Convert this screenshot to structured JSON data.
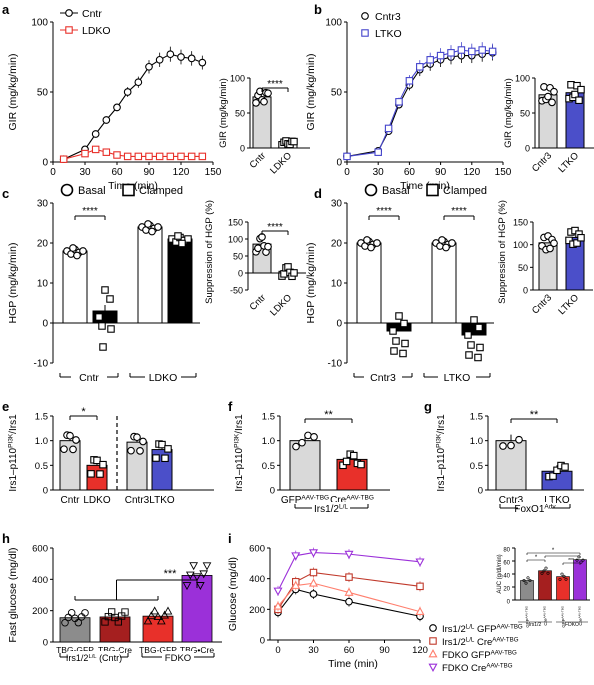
{
  "chart_data": [
    {
      "panel": "a",
      "type": "line",
      "ylabel": "GIR (mg/kg/min)",
      "xlabel": "Time (min)",
      "xlim": [
        0,
        150
      ],
      "ylim": [
        0,
        100
      ],
      "xticks": [
        "0",
        "30",
        "60",
        "90",
        "120",
        "150"
      ],
      "yticks": [
        "0",
        "50",
        "100"
      ],
      "legend": "top-left",
      "series": [
        {
          "name": "Cntr",
          "color": "#000000",
          "x": [
            10,
            30,
            40,
            50,
            60,
            70,
            80,
            90,
            100,
            110,
            120,
            130,
            140
          ],
          "y": [
            2,
            9,
            20,
            30,
            39,
            50,
            57,
            68,
            73,
            77,
            75,
            74,
            71
          ]
        },
        {
          "name": "LDKO",
          "color": "#e8302a",
          "x": [
            10,
            30,
            40,
            50,
            60,
            70,
            80,
            90,
            100,
            110,
            120,
            130,
            140
          ],
          "y": [
            2,
            6,
            9,
            7,
            5,
            4,
            4,
            4,
            4,
            4,
            4,
            4,
            4
          ]
        }
      ]
    },
    {
      "panel": "a-inset",
      "type": "bar",
      "ylabel": "GIR (mg/kg/min)",
      "ylim": [
        0,
        100
      ],
      "yticks": [
        "0",
        "50",
        "100"
      ],
      "categories": [
        "Cntr",
        "LDKO"
      ],
      "values": [
        73,
        6
      ],
      "significance": "****"
    },
    {
      "panel": "b",
      "type": "line",
      "ylabel": "GIR (mg/kg/min)",
      "xlabel": "Time (min)",
      "xlim": [
        0,
        150
      ],
      "ylim": [
        0,
        100
      ],
      "xticks": [
        "0",
        "30",
        "60",
        "90",
        "120",
        "150"
      ],
      "yticks": [
        "0",
        "50",
        "100"
      ],
      "legend": "top-left",
      "series": [
        {
          "name": "Cntr3",
          "color": "#000000",
          "x": [
            0,
            30,
            40,
            50,
            60,
            70,
            80,
            90,
            100,
            110,
            120,
            130,
            140
          ],
          "y": [
            4,
            8,
            22,
            41,
            55,
            66,
            70,
            73,
            75,
            76,
            76,
            77,
            78
          ]
        },
        {
          "name": "LTKO",
          "color": "#4444cc",
          "x": [
            0,
            30,
            40,
            50,
            60,
            70,
            80,
            90,
            100,
            110,
            120,
            130,
            140
          ],
          "y": [
            4,
            7,
            24,
            43,
            58,
            68,
            73,
            76,
            78,
            80,
            79,
            80,
            79
          ]
        }
      ]
    },
    {
      "panel": "b-inset",
      "type": "bar",
      "ylabel": "GIR (mg/kg/min)",
      "ylim": [
        0,
        100
      ],
      "yticks": [
        "0",
        "50",
        "100"
      ],
      "categories": [
        "Cntr3",
        "LTKO"
      ],
      "values": [
        76,
        79
      ]
    },
    {
      "panel": "c",
      "type": "bar",
      "ylabel": "HGP (mg/kg/min)",
      "ylim": [
        -10,
        30
      ],
      "yticks": [
        "-10",
        "0",
        "10",
        "20",
        "30"
      ],
      "legend_items": [
        "Basal",
        "Clamped"
      ],
      "categories": [
        "Basal",
        "Clamped",
        "Basal",
        "Clamped"
      ],
      "groups": [
        "Cntr",
        "LDKO"
      ],
      "values": [
        18,
        3,
        24,
        21
      ],
      "significance": "****"
    },
    {
      "panel": "c-inset",
      "type": "bar",
      "ylabel": "Suppression of HGP (%)",
      "ylim": [
        -50,
        150
      ],
      "yticks": [
        "-50",
        "0",
        "50",
        "100",
        "150"
      ],
      "categories": [
        "Cntr",
        "LDKO"
      ],
      "values": [
        85,
        5
      ],
      "significance": "****"
    },
    {
      "panel": "d",
      "type": "bar",
      "ylabel": "HGP (mg/kg/min)",
      "ylim": [
        -10,
        30
      ],
      "yticks": [
        "-10",
        "0",
        "10",
        "20",
        "30"
      ],
      "legend_items": [
        "Basal",
        "Clamped"
      ],
      "categories": [
        "Basal",
        "Clamped",
        "Basal",
        "Clamped"
      ],
      "groups": [
        "Cntr3",
        "LTKO"
      ],
      "values": [
        20,
        -2,
        20,
        -3
      ],
      "significance": [
        "****",
        "****"
      ]
    },
    {
      "panel": "d-inset",
      "type": "bar",
      "ylabel": "Suppression of HGP (%)",
      "ylim": [
        0,
        150
      ],
      "yticks": [
        "0",
        "50",
        "100",
        "150"
      ],
      "categories": [
        "Cntr3",
        "LTKO"
      ],
      "values": [
        104,
        116
      ]
    },
    {
      "panel": "e",
      "type": "bar",
      "ylabel": "Irs1–p110PI3K/Irs1",
      "ylim": [
        0,
        1.5
      ],
      "yticks": [
        "0",
        "0.5",
        "1.0",
        "1.5"
      ],
      "categories": [
        "Cntr",
        "LDKO",
        "Cntr3",
        "LTKO"
      ],
      "values": [
        1.0,
        0.5,
        0.97,
        0.82
      ],
      "significance": "*"
    },
    {
      "panel": "f",
      "type": "bar",
      "ylabel": "Irs1–p110PI3K/Irs1",
      "ylim": [
        0,
        1.5
      ],
      "yticks": [
        "0",
        "0.5",
        "1.0",
        "1.5"
      ],
      "categories": [
        "GFPAAV-TBG",
        "CreAAV-TBG"
      ],
      "group": "Irs1/2L/L",
      "values": [
        1.0,
        0.62
      ],
      "significance": "**"
    },
    {
      "panel": "g",
      "type": "bar",
      "ylabel": "Irs1–p110PI3K/Irs1",
      "ylim": [
        0,
        1.5
      ],
      "yticks": [
        "0",
        "0.5",
        "1.0",
        "1.5"
      ],
      "categories": [
        "Cntr3",
        "LTKO"
      ],
      "group": "FoxO1Adv",
      "values": [
        1.0,
        0.38
      ],
      "significance": "**"
    },
    {
      "panel": "h",
      "type": "bar",
      "ylabel": "Fast glucose (mg/dl)",
      "ylim": [
        0,
        600
      ],
      "yticks": [
        "0",
        "200",
        "400",
        "600"
      ],
      "categories": [
        "TBG-GFP",
        "TBG-Cre",
        "TBG-GFP",
        "TBG•Cre"
      ],
      "groups": [
        "Irs1/2L/L (Cntr)",
        "FDKO"
      ],
      "values": [
        155,
        160,
        165,
        425
      ],
      "significance": "***"
    },
    {
      "panel": "i",
      "type": "line",
      "ylabel": "Glucose (mg/dl)",
      "xlabel": "Time (min)",
      "xlim": [
        0,
        120
      ],
      "ylim": [
        0,
        600
      ],
      "xticks": [
        "0",
        "30",
        "60",
        "90",
        "120"
      ],
      "yticks": [
        "0",
        "200",
        "400",
        "600"
      ],
      "legend": "bottom-right",
      "series": [
        {
          "name": "Irs1/2L/L GFPAAV-TBG",
          "color": "#000000",
          "x": [
            0,
            15,
            30,
            60,
            120
          ],
          "y": [
            180,
            330,
            300,
            250,
            155
          ]
        },
        {
          "name": "Irs1/2L/L CreAAV-TBG",
          "color": "#c0392b",
          "x": [
            0,
            15,
            30,
            60,
            120
          ],
          "y": [
            200,
            380,
            440,
            410,
            350
          ]
        },
        {
          "name": "FDKO GFPAAV-TBG",
          "color": "#ff7f6e",
          "x": [
            0,
            15,
            30,
            60,
            120
          ],
          "y": [
            220,
            355,
            370,
            310,
            185
          ]
        },
        {
          "name": "FDKO CreAAV-TBG",
          "color": "#9b30d9",
          "x": [
            0,
            15,
            30,
            60,
            120
          ],
          "y": [
            320,
            550,
            570,
            560,
            510
          ]
        }
      ]
    },
    {
      "panel": "i-inset",
      "type": "bar",
      "ylabel": "AUC (g/dl/min)",
      "ylim": [
        0,
        80
      ],
      "yticks": [
        "0",
        "20",
        "40",
        "60",
        "80"
      ],
      "categories": [
        "GFPAAV-TBG",
        "CreAAV-TBG",
        "GFPAAV-TBG",
        "CreAAV-TBG"
      ],
      "groups": [
        "Irs1/2",
        "FDKO"
      ],
      "values": [
        30,
        45,
        36,
        62
      ]
    }
  ],
  "panel_labels": [
    "a",
    "b",
    "c",
    "d",
    "e",
    "f",
    "g",
    "h",
    "i"
  ],
  "sup": {
    "pi3k": "PI3K",
    "ll": "L/L",
    "aav": "AAV-TBG",
    "adv": "Adv"
  },
  "text": {
    "irs_ratio": "Irs1–p110",
    "irs_tail": "/Irs1",
    "irs12": "Irs1/2",
    "cntr_label": "(Cntr)",
    "fdko": "FDKO",
    "foxo1": "FoxO1",
    "gfp": "GFP",
    "cre": "Cre"
  }
}
